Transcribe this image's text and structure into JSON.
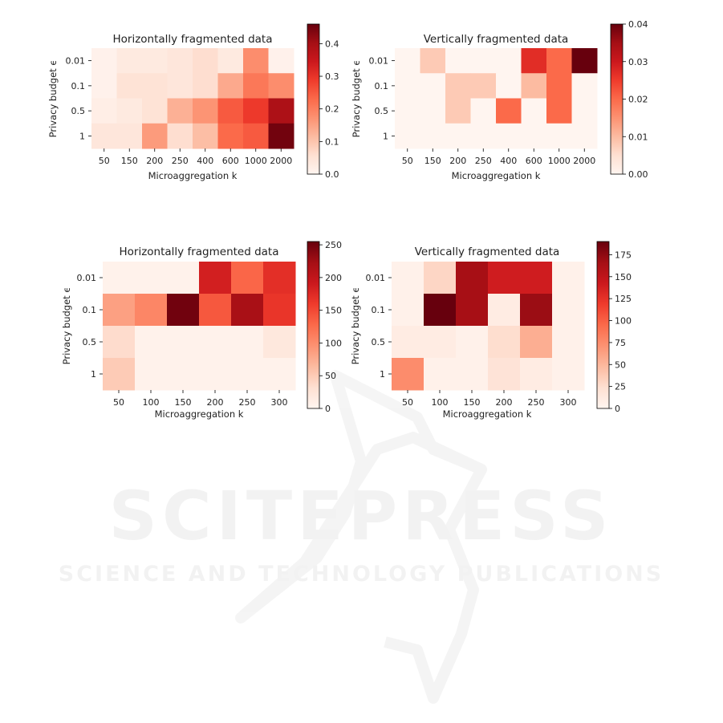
{
  "watermark": {
    "main": "SCITEPRESS",
    "sub": "SCIENCE AND TECHNOLOGY PUBLICATIONS"
  },
  "colormap": "Reds",
  "chart_data": [
    {
      "type": "heatmap",
      "title": "Horizontally fragmented data",
      "xlabel": "Microaggregation k",
      "ylabel": "Privacy budget ϵ",
      "x_categories": [
        "50",
        "150",
        "200",
        "250",
        "400",
        "600",
        "1000",
        "2000"
      ],
      "y_categories": [
        "0.01",
        "0.1",
        "0.5",
        "1"
      ],
      "values": [
        [
          0.01,
          0.03,
          0.03,
          0.04,
          0.06,
          0.03,
          0.18,
          0.01
        ],
        [
          0.01,
          0.05,
          0.05,
          0.04,
          0.06,
          0.14,
          0.21,
          0.18
        ],
        [
          0.02,
          0.03,
          0.05,
          0.13,
          0.17,
          0.25,
          0.29,
          0.39
        ],
        [
          0.04,
          0.04,
          0.16,
          0.06,
          0.11,
          0.23,
          0.25,
          0.45
        ]
      ],
      "color_range": [
        0,
        0.46
      ],
      "colorbar_ticks": [
        {
          "value": 0,
          "label": "0.0"
        },
        {
          "value": 0.1,
          "label": "0.1"
        },
        {
          "value": 0.2,
          "label": "0.2"
        },
        {
          "value": 0.3,
          "label": "0.3"
        },
        {
          "value": 0.4,
          "label": "0.4"
        }
      ]
    },
    {
      "type": "heatmap",
      "title": "Vertically fragmented data",
      "xlabel": "Microaggregation k",
      "ylabel": "Privacy budget ϵ",
      "x_categories": [
        "50",
        "150",
        "200",
        "250",
        "400",
        "600",
        "1000",
        "2000"
      ],
      "y_categories": [
        "0.01",
        "0.1",
        "0.5",
        "1"
      ],
      "values": [
        [
          0,
          0.008,
          0,
          0,
          0,
          0.027,
          0.02,
          0.04
        ],
        [
          0,
          0,
          0.008,
          0.008,
          0,
          0.01,
          0.02,
          0
        ],
        [
          0,
          0,
          0.008,
          0,
          0.02,
          0,
          0.02,
          0
        ],
        [
          0,
          0,
          0,
          0,
          0,
          0,
          0,
          0
        ]
      ],
      "color_range": [
        0,
        0.04
      ],
      "colorbar_ticks": [
        {
          "value": 0,
          "label": "0.00"
        },
        {
          "value": 0.01,
          "label": "0.01"
        },
        {
          "value": 0.02,
          "label": "0.02"
        },
        {
          "value": 0.03,
          "label": "0.03"
        },
        {
          "value": 0.04,
          "label": "0.04"
        }
      ]
    },
    {
      "type": "heatmap",
      "title": "Horizontally fragmented data",
      "xlabel": "Microaggregation k",
      "ylabel": "Privacy budget ϵ",
      "x_categories": [
        "50",
        "100",
        "150",
        "200",
        "250",
        "300"
      ],
      "y_categories": [
        "0.01",
        "0.1",
        "0.5",
        "1"
      ],
      "values": [
        [
          5,
          5,
          5,
          185,
          130,
          170
        ],
        [
          85,
          105,
          250,
          140,
          220,
          165
        ],
        [
          35,
          5,
          5,
          5,
          5,
          20
        ],
        [
          50,
          5,
          5,
          5,
          5,
          5
        ]
      ],
      "color_range": [
        0,
        255
      ],
      "colorbar_ticks": [
        {
          "value": 0,
          "label": "0"
        },
        {
          "value": 50,
          "label": "50"
        },
        {
          "value": 100,
          "label": "100"
        },
        {
          "value": 150,
          "label": "150"
        },
        {
          "value": 200,
          "label": "200"
        },
        {
          "value": 250,
          "label": "250"
        }
      ]
    },
    {
      "type": "heatmap",
      "title": "Vertically fragmented data",
      "xlabel": "Microaggregation k",
      "ylabel": "Privacy budget ϵ",
      "x_categories": [
        "50",
        "100",
        "150",
        "200",
        "250",
        "300"
      ],
      "y_categories": [
        "0.01",
        "0.1",
        "0.5",
        "1"
      ],
      "values": [
        [
          5,
          30,
          165,
          140,
          140,
          5
        ],
        [
          5,
          190,
          165,
          10,
          170,
          5
        ],
        [
          10,
          10,
          5,
          25,
          55,
          5
        ],
        [
          75,
          5,
          5,
          20,
          10,
          5
        ]
      ],
      "color_range": [
        0,
        190
      ],
      "colorbar_ticks": [
        {
          "value": 0,
          "label": "0"
        },
        {
          "value": 25,
          "label": "25"
        },
        {
          "value": 50,
          "label": "50"
        },
        {
          "value": 75,
          "label": "75"
        },
        {
          "value": 100,
          "label": "100"
        },
        {
          "value": 125,
          "label": "125"
        },
        {
          "value": 150,
          "label": "150"
        },
        {
          "value": 175,
          "label": "175"
        }
      ]
    }
  ]
}
